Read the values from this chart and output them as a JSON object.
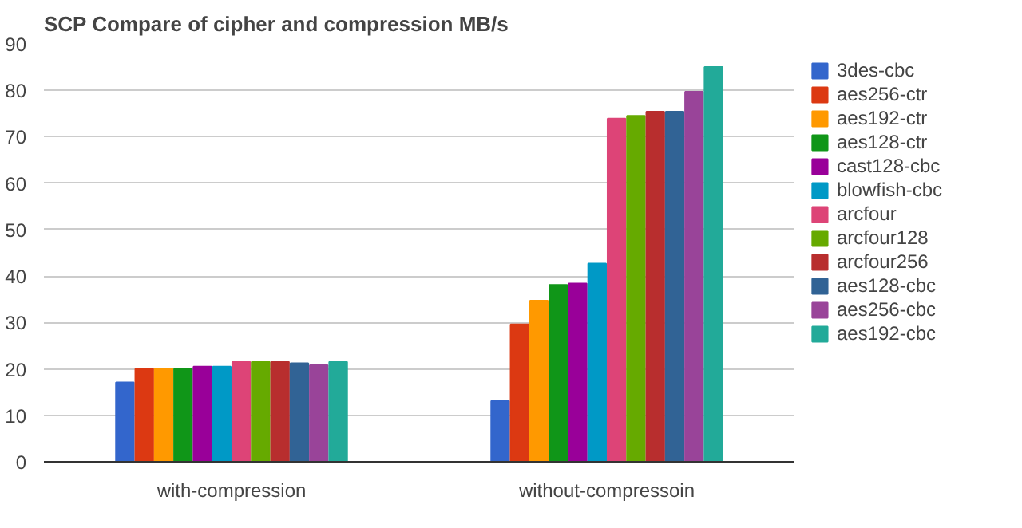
{
  "chart_data": {
    "type": "bar",
    "title": "SCP Compare of cipher and compression MB/s",
    "categories": [
      "with-compression",
      "without-compressoin"
    ],
    "series": [
      {
        "name": "3des-cbc",
        "color": "#3366cc",
        "values": [
          17.1,
          13.1
        ]
      },
      {
        "name": "aes256-ctr",
        "color": "#dc3912",
        "values": [
          20.0,
          29.6
        ]
      },
      {
        "name": "aes192-ctr",
        "color": "#ff9900",
        "values": [
          20.1,
          34.7
        ]
      },
      {
        "name": "aes128-ctr",
        "color": "#109618",
        "values": [
          20.0,
          38.1
        ]
      },
      {
        "name": "cast128-cbc",
        "color": "#990099",
        "values": [
          20.5,
          38.4
        ]
      },
      {
        "name": "blowfish-cbc",
        "color": "#0099c6",
        "values": [
          20.5,
          42.7
        ]
      },
      {
        "name": "arcfour",
        "color": "#dd4477",
        "values": [
          21.5,
          73.9
        ]
      },
      {
        "name": "arcfour128",
        "color": "#66aa00",
        "values": [
          21.5,
          74.5
        ]
      },
      {
        "name": "arcfour256",
        "color": "#b82e2e",
        "values": [
          21.5,
          75.4
        ]
      },
      {
        "name": "aes128-cbc",
        "color": "#316395",
        "values": [
          21.2,
          75.4
        ]
      },
      {
        "name": "aes256-cbc",
        "color": "#994499",
        "values": [
          20.8,
          79.7
        ]
      },
      {
        "name": "aes192-cbc",
        "color": "#22aa99",
        "values": [
          21.5,
          85.0
        ]
      }
    ],
    "ylim": [
      0,
      90
    ],
    "yticks": [
      0,
      10,
      20,
      30,
      40,
      50,
      60,
      70,
      80,
      90
    ],
    "grid": "y",
    "legend": "right"
  }
}
